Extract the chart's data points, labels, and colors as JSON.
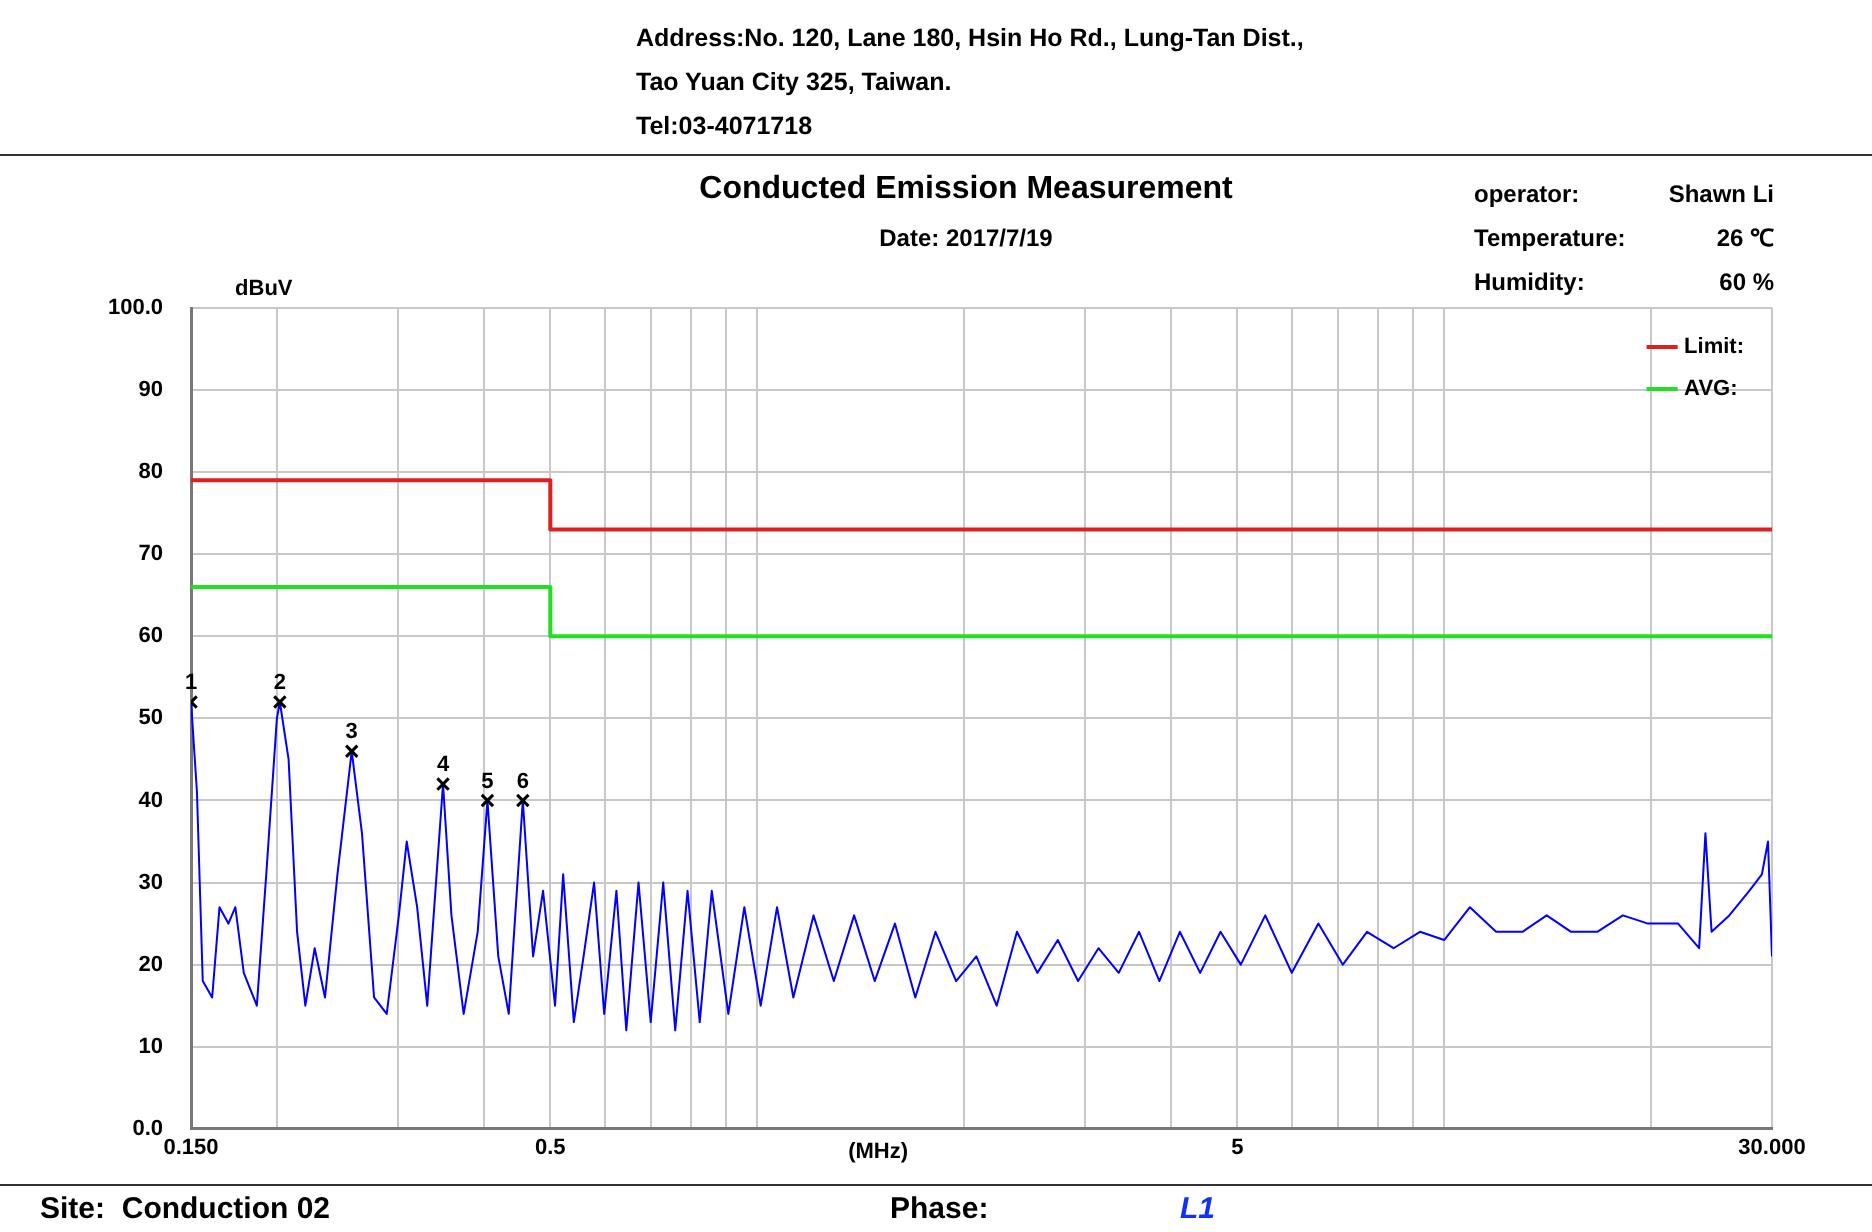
{
  "chart_data": {
    "type": "line",
    "title": "Conducted Emission Measurement",
    "subtitle": "Date: 2017/7/19",
    "xlabel": "(MHz)",
    "ylabel": "dBuV",
    "annotations": [
      "Address:No. 120, Lane 180, Hsin Ho Rd., Lung-Tan Dist.,",
      "Tao Yuan City 325, Taiwan.",
      "Tel:03-4071718",
      "operator:",
      "Shawn Li",
      "Temperature:",
      "26 ℃",
      "Humidity:",
      "60 %",
      "Site:",
      "Conduction 02",
      "Phase:",
      "L1",
      {
        "text": "1",
        "x": 0.15,
        "y": 52
      },
      {
        "text": "2",
        "x": 0.202,
        "y": 52
      },
      {
        "text": "3",
        "x": 0.257,
        "y": 46
      },
      {
        "text": "4",
        "x": 0.349,
        "y": 42
      },
      {
        "text": "5",
        "x": 0.405,
        "y": 40
      },
      {
        "text": "6",
        "x": 0.456,
        "y": 40
      }
    ],
    "log": "x",
    "grid": true,
    "legend": "top right",
    "xlim": [
      0.15,
      30
    ],
    "ylim": [
      0,
      100
    ],
    "xticks": [
      {
        "value": 0.15,
        "label": "0.150"
      },
      {
        "value": 0.2,
        "label": null
      },
      {
        "value": 0.3,
        "label": null
      },
      {
        "value": 0.4,
        "label": null
      },
      0.5,
      {
        "value": 0.6,
        "label": null
      },
      {
        "value": 0.7,
        "label": null
      },
      {
        "value": 0.8,
        "label": null
      },
      {
        "value": 0.9,
        "label": null
      },
      {
        "value": 1,
        "label": null
      },
      {
        "value": 2,
        "label": null
      },
      {
        "value": 3,
        "label": null
      },
      {
        "value": 4,
        "label": null
      },
      5,
      {
        "value": 6,
        "label": null
      },
      {
        "value": 7,
        "label": null
      },
      {
        "value": 8,
        "label": null
      },
      {
        "value": 9,
        "label": null
      },
      {
        "value": 10,
        "label": null
      },
      {
        "value": 20,
        "label": null
      },
      {
        "value": 30,
        "label": "30.000"
      }
    ],
    "yticks": [
      {
        "value": 0,
        "label": "0.0"
      },
      10,
      20,
      30,
      40,
      50,
      60,
      70,
      80,
      90,
      {
        "value": 100,
        "label": "100.0"
      }
    ],
    "series": [
      {
        "color": "#0000ff",
        "x": [
          0.15,
          0.153,
          0.156,
          0.161,
          0.165,
          0.17,
          0.174,
          0.179,
          0.187,
          0.193,
          0.2,
          0.202,
          0.208,
          0.214,
          0.22,
          0.227,
          0.235,
          0.245,
          0.257,
          0.266,
          0.277,
          0.289,
          0.301,
          0.309,
          0.32,
          0.331,
          0.349,
          0.359,
          0.374,
          0.392,
          0.405,
          0.42,
          0.435,
          0.456,
          0.472,
          0.488,
          0.508,
          0.522,
          0.541,
          0.559,
          0.579,
          0.599,
          0.624,
          0.645,
          0.672,
          0.7,
          0.73,
          0.76,
          0.792,
          0.825,
          0.859,
          0.908,
          0.958,
          1.012,
          1.069,
          1.129,
          1.208,
          1.293,
          1.384,
          1.483,
          1.587,
          1.699,
          1.818,
          1.948,
          2.085,
          2.232,
          2.389,
          2.558,
          2.739,
          2.932,
          3.139,
          3.36,
          3.597,
          3.85,
          4.123,
          4.414,
          4.725,
          5.058,
          5.49,
          6.0,
          6.56,
          7.12,
          7.72,
          8.44,
          9.22,
          10.0,
          10.9,
          11.9,
          13.0,
          14.1,
          15.3,
          16.7,
          18.2,
          19.8,
          21.9,
          23.5,
          24.0,
          24.5,
          26.0,
          27.8,
          29.0,
          29.6,
          30.0
        ],
        "values": [
          52,
          41,
          18,
          16,
          27,
          25,
          27,
          19,
          15,
          31,
          50,
          52,
          45,
          24,
          15,
          22,
          16,
          31,
          46,
          36,
          16,
          14,
          26,
          35,
          27,
          15,
          42,
          26,
          14,
          24,
          40,
          21,
          14,
          40,
          21,
          29,
          15,
          31,
          13,
          21,
          30,
          14,
          29,
          12,
          30,
          13,
          30,
          12,
          29,
          13,
          29,
          14,
          27,
          15,
          27,
          16,
          26,
          18,
          26,
          18,
          25,
          16,
          24,
          18,
          21,
          15,
          24,
          19,
          23,
          18,
          22,
          19,
          24,
          18,
          24,
          19,
          24,
          20,
          26,
          19,
          25,
          20,
          24,
          22,
          24,
          23,
          27,
          24,
          24,
          26,
          24,
          24,
          26,
          25,
          25,
          22,
          36,
          24,
          26,
          29,
          31,
          35,
          21
        ]
      },
      {
        "type": "line",
        "name": "Limit:",
        "color": "#e02020",
        "x": [
          0.15,
          0.5,
          0.5,
          30
        ],
        "values": [
          79,
          79,
          73,
          73
        ]
      },
      {
        "type": "line",
        "name": "AVG:",
        "color": "#20e020",
        "x": [
          0.15,
          0.5,
          0.5,
          30
        ],
        "values": [
          66,
          66,
          60,
          60
        ]
      },
      {
        "type": "scatter",
        "marker": "cross",
        "color": "#000000",
        "x": [
          0.15,
          0.202,
          0.257,
          0.349,
          0.405,
          0.456
        ],
        "values": [
          52,
          52,
          46,
          42,
          40,
          40
        ]
      }
    ]
  }
}
